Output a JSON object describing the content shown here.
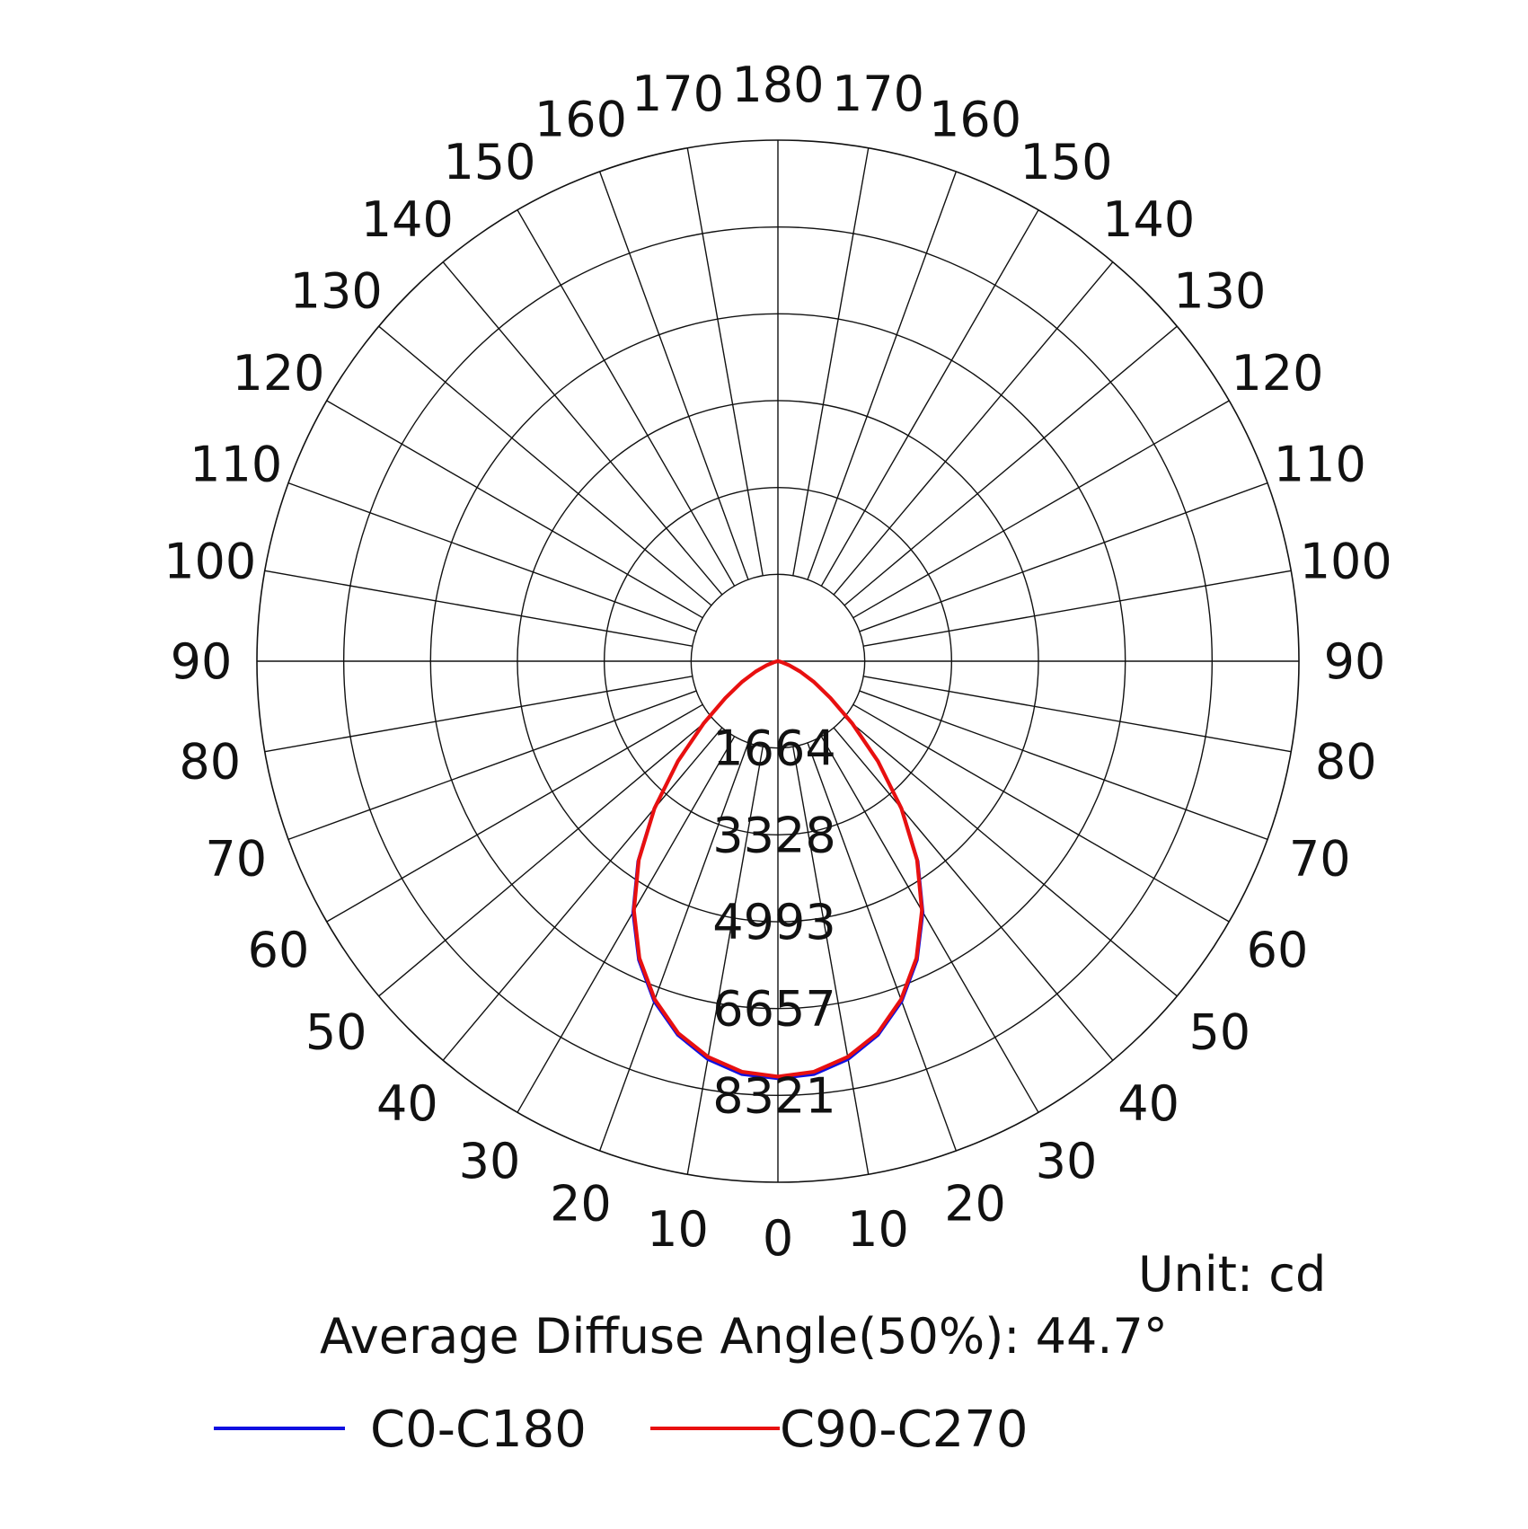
{
  "chart_data": {
    "type": "polar-line",
    "unit_label": "Unit: cd",
    "diffuse_angle_label": "Average Diffuse Angle(50%): 44.7°",
    "max_radius": 9985,
    "ring_values": [
      1664,
      3328,
      4993,
      6657,
      8321
    ],
    "ring_labels": [
      "1664",
      "3328",
      "4993",
      "6657",
      "8321"
    ],
    "angle_ticks": [
      0,
      10,
      20,
      30,
      40,
      50,
      60,
      70,
      80,
      90,
      100,
      110,
      120,
      130,
      140,
      150,
      160,
      170,
      180
    ],
    "angle_labels_right": [
      "0",
      "10",
      "20",
      "30",
      "40",
      "50",
      "60",
      "70",
      "80",
      "90",
      "100",
      "110",
      "120",
      "130",
      "140",
      "150",
      "160",
      "170",
      "180"
    ],
    "angle_labels_left": [
      "10",
      "20",
      "30",
      "40",
      "50",
      "60",
      "70",
      "80",
      "90",
      "100",
      "110",
      "120",
      "130",
      "140",
      "150",
      "160",
      "170"
    ],
    "gamma": [
      0,
      5,
      10,
      15,
      20,
      25,
      30,
      35,
      40,
      45,
      50,
      55,
      60,
      65,
      70,
      75,
      80,
      85,
      90
    ],
    "series": [
      {
        "name": "C0-C180",
        "color": "#1010e0",
        "intensity": [
          8000,
          7950,
          7750,
          7420,
          6940,
          6320,
          5560,
          4680,
          3700,
          2720,
          1860,
          1230,
          800,
          470,
          230,
          90,
          25,
          5,
          0
        ]
      },
      {
        "name": "C90-C270",
        "color": "#e81010",
        "intensity": [
          7960,
          7900,
          7700,
          7380,
          6900,
          6280,
          5520,
          4650,
          3680,
          2710,
          1860,
          1230,
          800,
          470,
          230,
          90,
          25,
          5,
          0
        ]
      }
    ]
  }
}
